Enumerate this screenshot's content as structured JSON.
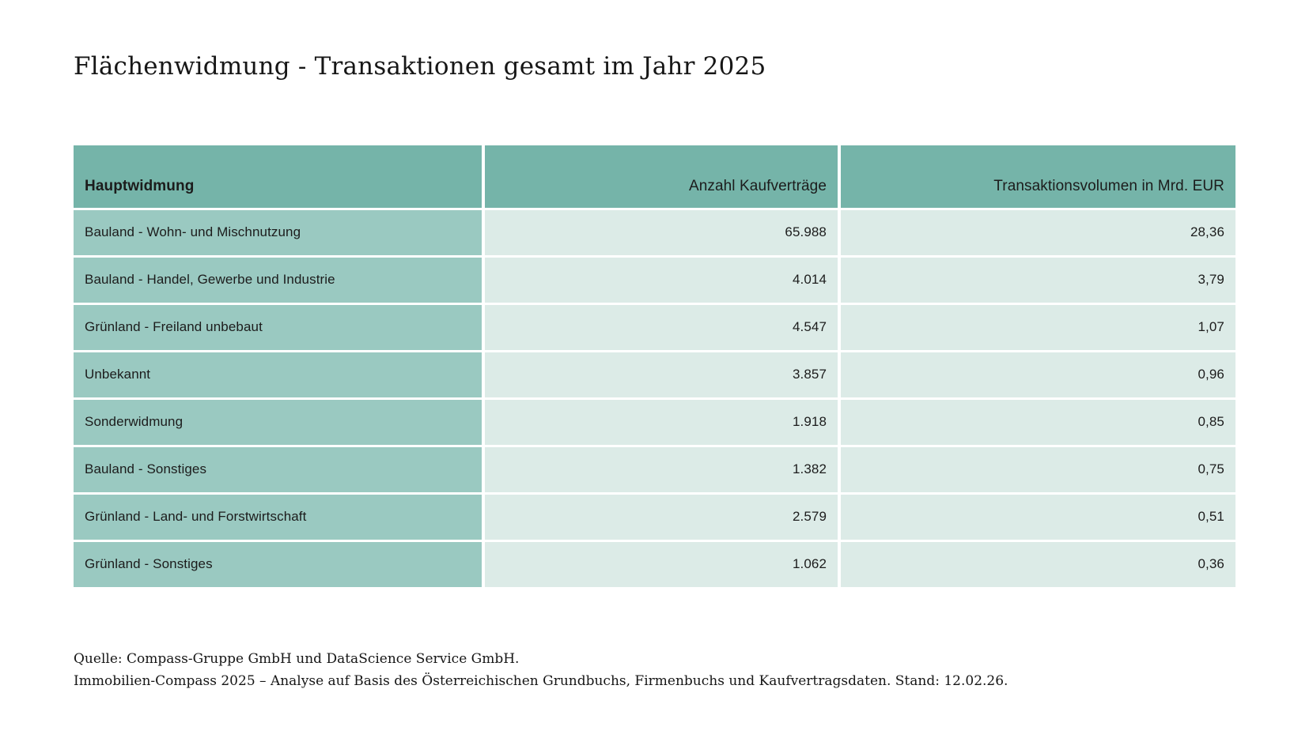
{
  "title": "Flächenwidmung - Transaktionen gesamt im Jahr 2025",
  "table": {
    "columns": [
      "Hauptwidmung",
      "Anzahl Kaufverträge",
      "Transaktionsvolumen in Mrd. EUR"
    ],
    "rows": [
      {
        "label": "Bauland - Wohn- und Mischnutzung",
        "contracts": "65.988",
        "volume": "28,36"
      },
      {
        "label": "Bauland - Handel, Gewerbe und Industrie",
        "contracts": "4.014",
        "volume": "3,79"
      },
      {
        "label": "Grünland - Freiland unbebaut",
        "contracts": "4.547",
        "volume": "1,07"
      },
      {
        "label": "Unbekannt",
        "contracts": "3.857",
        "volume": "0,96"
      },
      {
        "label": "Sonderwidmung",
        "contracts": "1.918",
        "volume": "0,85"
      },
      {
        "label": "Bauland - Sonstiges",
        "contracts": "1.382",
        "volume": "0,75"
      },
      {
        "label": "Grünland - Land- und Forstwirtschaft",
        "contracts": "2.579",
        "volume": "0,51"
      },
      {
        "label": "Grünland - Sonstiges",
        "contracts": "1.062",
        "volume": "0,36"
      }
    ]
  },
  "footer": {
    "line1": "Quelle: Compass-Gruppe GmbH und DataScience Service GmbH.",
    "line2": "Immobilien-Compass 2025 – Analyse auf Basis des Österreichischen Grundbuchs, Firmenbuchs und Kaufvertragsdaten. Stand: 12.02.26."
  },
  "colors": {
    "header_bg": "#75b4a9",
    "row_label_bg": "#9ac9c1",
    "value_cell_bg": "#dcebe7",
    "text": "#1c1c1c",
    "page_bg": "#ffffff"
  },
  "chart_data": {
    "type": "table",
    "title": "Flächenwidmung - Transaktionen gesamt im Jahr 2025",
    "columns": [
      "Hauptwidmung",
      "Anzahl Kaufverträge",
      "Transaktionsvolumen in Mrd. EUR"
    ],
    "rows": [
      [
        "Bauland - Wohn- und Mischnutzung",
        65988,
        28.36
      ],
      [
        "Bauland - Handel, Gewerbe und Industrie",
        4014,
        3.79
      ],
      [
        "Grünland - Freiland unbebaut",
        4547,
        1.07
      ],
      [
        "Unbekannt",
        3857,
        0.96
      ],
      [
        "Sonderwidmung",
        1918,
        0.85
      ],
      [
        "Bauland - Sonstiges",
        1382,
        0.75
      ],
      [
        "Grünland - Land- und Forstwirtschaft",
        2579,
        0.51
      ],
      [
        "Grünland - Sonstiges",
        1062,
        0.36
      ]
    ],
    "number_format": "de-AT (thousands '.', decimals ',')",
    "source_note": "Quelle: Compass-Gruppe GmbH und DataScience Service GmbH. Immobilien-Compass 2025 – Analyse auf Basis des Österreichischen Grundbuchs, Firmenbuchs und Kaufvertragsdaten. Stand: 12.02.26."
  }
}
